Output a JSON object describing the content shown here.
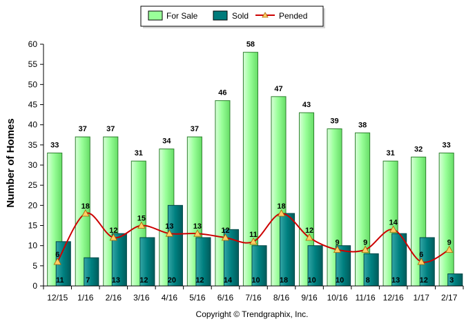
{
  "chart_data": {
    "type": "bar",
    "categories": [
      "12/15",
      "1/16",
      "2/16",
      "3/16",
      "4/16",
      "5/16",
      "6/16",
      "7/16",
      "8/16",
      "9/16",
      "10/16",
      "11/16",
      "12/16",
      "1/17",
      "2/17"
    ],
    "series": [
      {
        "name": "For Sale",
        "kind": "bar",
        "color": "#99ff99",
        "values": [
          33,
          37,
          37,
          31,
          34,
          37,
          46,
          58,
          47,
          43,
          39,
          38,
          31,
          32,
          33
        ]
      },
      {
        "name": "Sold",
        "kind": "bar",
        "color": "#007b7b",
        "values": [
          11,
          7,
          13,
          12,
          20,
          12,
          14,
          10,
          18,
          10,
          10,
          8,
          13,
          12,
          3
        ]
      },
      {
        "name": "Pended",
        "kind": "line",
        "color": "#cc0000",
        "marker_color": "#ffcc66",
        "values": [
          6,
          18,
          12,
          15,
          13,
          13,
          12,
          11,
          18,
          12,
          9,
          9,
          14,
          6,
          9
        ]
      }
    ],
    "ylabel": "Number of Homes",
    "xlabel": "",
    "ylim": [
      0,
      60
    ],
    "yticks": [
      0,
      5,
      10,
      15,
      20,
      25,
      30,
      35,
      40,
      45,
      50,
      55,
      60
    ],
    "legend_position": "top-center",
    "copyright": "Copyright © Trendgraphix, Inc."
  }
}
